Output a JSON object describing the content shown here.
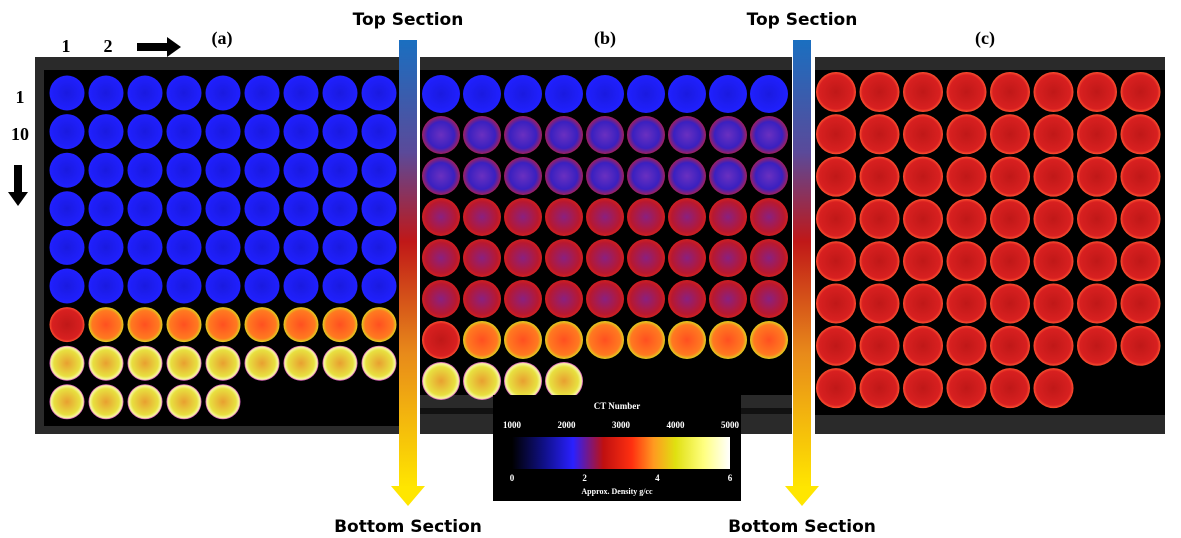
{
  "labels": {
    "col_1": "1",
    "col_2": "2",
    "row_1": "1",
    "row_10": "10"
  },
  "panels": [
    {
      "label": "(a)"
    },
    {
      "label": "(b)"
    },
    {
      "label": "(c)"
    }
  ],
  "arrows": [
    {
      "top": "Top Section",
      "bottom": "Bottom Section"
    },
    {
      "top": "Top Section",
      "bottom": "Bottom Section"
    }
  ],
  "colorbar": {
    "title": "CT Number",
    "ct_ticks": [
      "1000",
      "2000",
      "3000",
      "4000",
      "5000"
    ],
    "density_label": "Approx. Density g/cc",
    "density_ticks": [
      "0",
      "2",
      "4",
      "6"
    ]
  }
}
